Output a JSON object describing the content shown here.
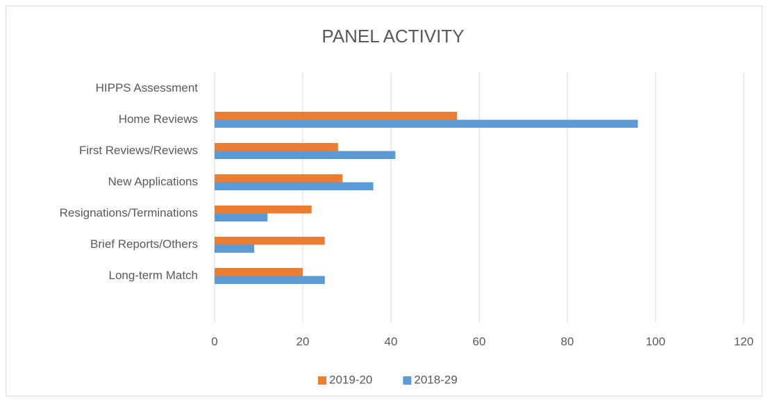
{
  "chart_data": {
    "type": "hbar",
    "title": "PANEL ACTIVITY",
    "categories": [
      "HIPPS Assessment",
      "Home Reviews",
      "First Reviews/Reviews",
      "New Applications",
      "Resignations/Terminations",
      "Brief Reports/Others",
      "Long-term Match",
      null
    ],
    "series": [
      {
        "name": "2019-20",
        "color": "#ed7d31",
        "values": [
          0,
          55,
          28,
          29,
          22,
          25,
          20,
          null
        ]
      },
      {
        "name": "2018-29",
        "color": "#5b9bd5",
        "values": [
          0,
          96,
          41,
          36,
          12,
          9,
          25,
          null
        ]
      }
    ],
    "xlim": [
      0,
      120
    ],
    "xticks": [
      0,
      20,
      40,
      60,
      80,
      100,
      120
    ],
    "grid": true,
    "legend": "bottom"
  }
}
